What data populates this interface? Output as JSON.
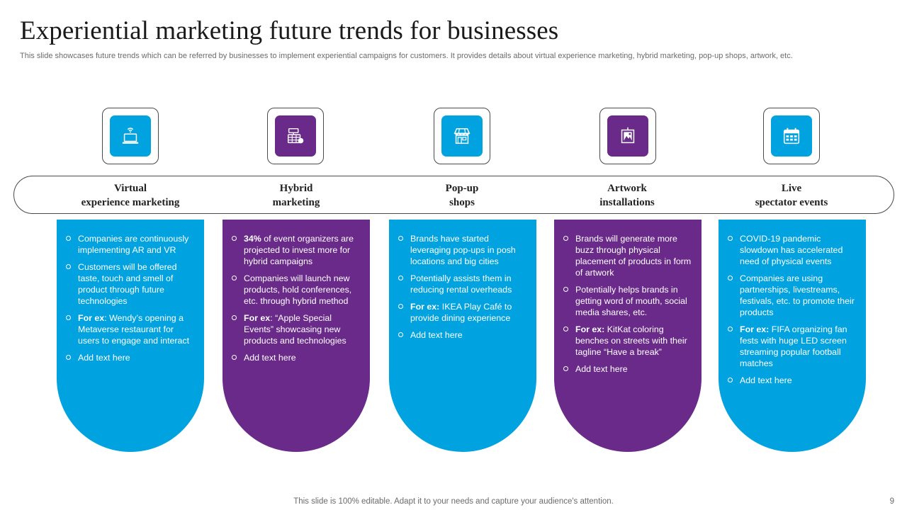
{
  "slide": {
    "title": "Experiential marketing future trends for businesses",
    "subtitle": "This slide showcases future trends which can be referred by businesses to implement experiential campaigns for customers. It provides details about virtual experience marketing, hybrid marketing, pop-up shops, artwork, etc.",
    "footer": "This slide is 100% editable. Adapt it to your needs and capture your audience's attention.",
    "page_number": "9"
  },
  "colors": {
    "blue": "#00A3E0",
    "purple": "#6A2A8A",
    "border": "#4a4a4a"
  },
  "trends": [
    {
      "icon": "laptop-wifi-icon",
      "color": "#00A3E0",
      "heading": [
        "Virtual",
        "experience marketing"
      ],
      "bullets": [
        {
          "bold": "",
          "text": "Companies are continuously implementing AR and VR"
        },
        {
          "bold": "",
          "text": "Customers will be offered taste, touch and smell of product through future technologies"
        },
        {
          "bold": "For ex",
          "text": ": Wendy’s opening a Metaverse restaurant for users to engage and interact"
        },
        {
          "bold": "",
          "text": "Add text here"
        }
      ]
    },
    {
      "icon": "hybrid-calendar-icon",
      "color": "#6A2A8A",
      "heading": [
        "Hybrid",
        "marketing"
      ],
      "bullets": [
        {
          "bold": "34%",
          "text": " of event organizers are projected to invest more for hybrid campaigns"
        },
        {
          "bold": "",
          "text": "Companies will launch new products, hold conferences, etc. through hybrid method"
        },
        {
          "bold": "For ex",
          "text": ": “Apple Special Events” showcasing new products and technologies"
        },
        {
          "bold": "",
          "text": "Add text here"
        }
      ]
    },
    {
      "icon": "shop-icon",
      "color": "#00A3E0",
      "heading": [
        "Pop-up",
        "shops"
      ],
      "bullets": [
        {
          "bold": "",
          "text": "Brands have started leveraging pop-ups in posh locations and big cities"
        },
        {
          "bold": "",
          "text": "Potentially assists them in reducing rental overheads"
        },
        {
          "bold": "For ex:",
          "text": " IKEA Play Café to provide dining experience"
        },
        {
          "bold": "",
          "text": "Add text here"
        }
      ]
    },
    {
      "icon": "picture-frame-icon",
      "color": "#6A2A8A",
      "heading": [
        "Artwork",
        "installations"
      ],
      "bullets": [
        {
          "bold": "",
          "text": "Brands will generate more buzz through physical placement of products in form of artwork"
        },
        {
          "bold": "",
          "text": "Potentially helps brands in getting word of mouth, social media shares, etc."
        },
        {
          "bold": "For ex:",
          "text": " KitKat coloring benches on streets with their tagline “Have a break”"
        },
        {
          "bold": "",
          "text": "Add text here"
        }
      ]
    },
    {
      "icon": "event-calendar-icon",
      "color": "#00A3E0",
      "heading": [
        "Live",
        "spectator events"
      ],
      "bullets": [
        {
          "bold": "",
          "text": "COVID-19 pandemic slowdown has accelerated need of physical events"
        },
        {
          "bold": "",
          "text": "Companies are using partnerships, livestreams, festivals, etc. to promote their products"
        },
        {
          "bold": "For ex:",
          "text": " FIFA organizing fan fests with huge LED screen streaming popular football matches"
        },
        {
          "bold": "",
          "text": "Add text here"
        }
      ]
    }
  ]
}
